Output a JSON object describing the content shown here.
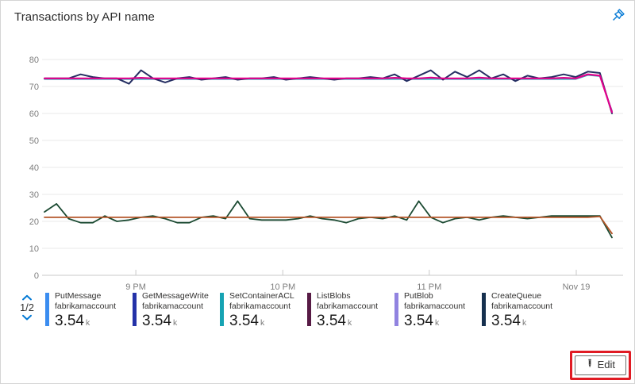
{
  "header": {
    "title": "Transactions by API name"
  },
  "chart_data": {
    "type": "line",
    "title": "Transactions by API name",
    "xlabel": "",
    "ylabel": "",
    "ylim": [
      0,
      80
    ],
    "yticks": [
      0,
      10,
      20,
      30,
      40,
      50,
      60,
      70,
      80
    ],
    "grid": true,
    "legend_position": "bottom",
    "x_axis_labels": [
      {
        "label": "9 PM",
        "pos": 0.161
      },
      {
        "label": "10 PM",
        "pos": 0.42
      },
      {
        "label": "11 PM",
        "pos": 0.678
      },
      {
        "label": "Nov 19",
        "pos": 0.937
      }
    ],
    "series": [
      {
        "name": "line-light-blue",
        "color": "#6b7de0",
        "width": 1.6,
        "values": [
          72.9,
          72.9,
          72.9,
          72.9,
          72.9,
          72.9,
          72.9,
          72.9,
          72.9,
          72.9,
          72.9,
          72.9,
          72.9,
          72.9,
          72.9,
          72.9,
          72.9,
          72.9,
          72.9,
          72.9,
          72.9,
          72.9,
          72.9,
          72.9,
          72.9,
          72.9,
          72.9,
          72.9,
          72.9,
          72.9,
          72.9,
          72.9,
          72.9,
          72.9,
          72.9,
          72.9,
          72.9,
          72.9,
          72.9,
          72.9,
          72.9,
          72.9,
          72.9,
          72.9,
          72.9,
          74.4,
          73.9,
          60.8
        ]
      },
      {
        "name": "line-teal",
        "color": "#2bb3bd",
        "width": 1.6,
        "values": [
          72.7,
          72.7,
          72.7,
          72.7,
          72.7,
          72.7,
          72.7,
          72.7,
          72.7,
          72.7,
          72.7,
          72.7,
          72.7,
          72.7,
          72.7,
          72.7,
          72.7,
          72.7,
          72.7,
          72.7,
          72.7,
          72.7,
          72.7,
          72.7,
          72.7,
          72.7,
          72.7,
          72.7,
          72.7,
          72.7,
          72.7,
          72.7,
          72.7,
          72.7,
          72.7,
          72.7,
          72.7,
          72.7,
          72.7,
          72.7,
          72.7,
          72.7,
          72.7,
          72.7,
          72.7,
          74.2,
          73.8,
          61.0
        ]
      },
      {
        "name": "line-dark-navy",
        "color": "#252e62",
        "width": 2,
        "values": [
          73,
          73,
          73,
          74.5,
          73.5,
          73,
          73,
          71,
          76,
          73,
          71.5,
          73,
          73.5,
          72.5,
          73,
          73.5,
          72.5,
          73,
          73,
          73.5,
          72.5,
          73,
          73.5,
          73,
          72.5,
          73,
          73,
          73.5,
          73,
          74.5,
          72,
          74,
          76,
          72.5,
          75.5,
          73.5,
          76,
          73,
          74.5,
          72,
          74,
          73,
          73.5,
          74.5,
          73.5,
          75.5,
          75,
          60
        ]
      },
      {
        "name": "line-magenta",
        "color": "#e3008c",
        "width": 2.2,
        "values": [
          73,
          73,
          73,
          73,
          73,
          73,
          73,
          73,
          73.2,
          73,
          73,
          73,
          73,
          73,
          73,
          73,
          73,
          73,
          73,
          73,
          73,
          73,
          73,
          73,
          73,
          73,
          73,
          73,
          73,
          73.2,
          73,
          73,
          73.3,
          73,
          73,
          73,
          73.3,
          73,
          73,
          73,
          73,
          73,
          73,
          73.2,
          73,
          74.5,
          74,
          60.5
        ]
      },
      {
        "name": "line-dark-green",
        "color": "#1b4a32",
        "width": 1.8,
        "values": [
          23.5,
          26.5,
          21,
          19.5,
          19.5,
          22,
          20,
          20.5,
          21.5,
          22,
          21,
          19.5,
          19.5,
          21.5,
          22,
          21,
          27.5,
          21,
          20.5,
          20.5,
          20.5,
          21,
          22,
          21,
          20.5,
          19.5,
          21,
          21.5,
          21,
          22,
          20.5,
          27.5,
          21.5,
          19.5,
          21,
          21.5,
          20.5,
          21.5,
          22,
          21.5,
          21,
          21.5,
          22,
          22,
          22,
          22,
          22,
          14
        ]
      },
      {
        "name": "line-orange",
        "color": "#b35427",
        "width": 1.8,
        "values": [
          21.5,
          21.5,
          21.5,
          21.5,
          21.5,
          21.5,
          21.5,
          21.5,
          21.5,
          21.5,
          21.5,
          21.5,
          21.5,
          21.5,
          21.5,
          21.5,
          21.5,
          21.5,
          21.5,
          21.5,
          21.5,
          21.5,
          21.5,
          21.5,
          21.5,
          21.5,
          21.5,
          21.5,
          21.5,
          21.5,
          21.5,
          21.5,
          21.5,
          21.5,
          21.5,
          21.5,
          21.5,
          21.5,
          21.5,
          21.5,
          21.5,
          21.5,
          21.5,
          21.5,
          21.5,
          21.5,
          21.8,
          15.5
        ]
      }
    ]
  },
  "legend": {
    "pager": {
      "label": "1/2"
    },
    "items": [
      {
        "name": "PutMessage",
        "account": "fabrikamaccount",
        "value": "3.54",
        "unit": "k",
        "color": "#3b8df0"
      },
      {
        "name": "GetMessageWrite",
        "account": "fabrikamaccount",
        "value": "3.54",
        "unit": "k",
        "color": "#2432a8"
      },
      {
        "name": "SetContainerACL",
        "account": "fabrikamaccount",
        "value": "3.54",
        "unit": "k",
        "color": "#16a3b3"
      },
      {
        "name": "ListBlobs",
        "account": "fabrikamaccount",
        "value": "3.54",
        "unit": "k",
        "color": "#571b45"
      },
      {
        "name": "PutBlob",
        "account": "fabrikamaccount",
        "value": "3.54",
        "unit": "k",
        "color": "#9183e0"
      },
      {
        "name": "CreateQueue",
        "account": "fabrikamaccount",
        "value": "3.54",
        "unit": "k",
        "color": "#16304e"
      }
    ]
  },
  "edit": {
    "label": "Edit"
  },
  "annotation": {
    "color": "#e01b24"
  }
}
